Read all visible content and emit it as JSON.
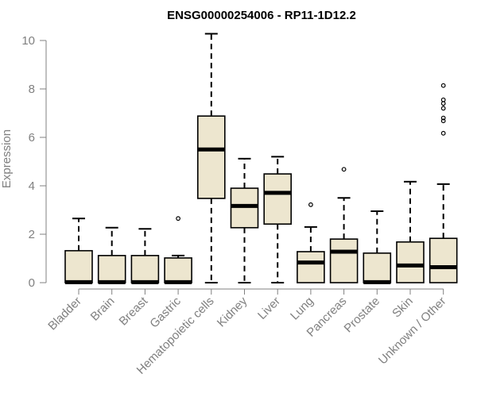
{
  "chart_data": {
    "type": "boxplot",
    "title": "ENSG00000254006 - RP11-1D12.2",
    "ylabel": "Expression",
    "ylim": [
      0,
      10.5
    ],
    "yticks": [
      "0",
      "2",
      "4",
      "6",
      "8",
      "10"
    ],
    "box_fill": "#ede6cf",
    "median_color": "#000000",
    "categories": [
      "Bladder",
      "Brain",
      "Breast",
      "Gastric",
      "Hematopoietic cells",
      "Kidney",
      "Liver",
      "Lung",
      "Pancreas",
      "Prostate",
      "Skin",
      "Unknown / Other"
    ],
    "boxes": [
      {
        "whislo": 0,
        "q1": 0,
        "med": 0.02,
        "q3": 1.32,
        "whishi": 2.65,
        "fliers": []
      },
      {
        "whislo": 0,
        "q1": 0,
        "med": 0.02,
        "q3": 1.12,
        "whishi": 2.27,
        "fliers": []
      },
      {
        "whislo": 0,
        "q1": 0,
        "med": 0.02,
        "q3": 1.12,
        "whishi": 2.22,
        "fliers": []
      },
      {
        "whislo": 0,
        "q1": 0,
        "med": 0.02,
        "q3": 1.02,
        "whishi": 1.12,
        "fliers": [
          2.65
        ]
      },
      {
        "whislo": 0,
        "q1": 3.48,
        "med": 5.5,
        "q3": 6.88,
        "whishi": 10.28,
        "fliers": []
      },
      {
        "whislo": 0,
        "q1": 2.27,
        "med": 3.17,
        "q3": 3.9,
        "whishi": 5.12,
        "fliers": []
      },
      {
        "whislo": 0,
        "q1": 2.42,
        "med": 3.71,
        "q3": 4.49,
        "whishi": 5.2,
        "fliers": []
      },
      {
        "whislo": 0,
        "q1": 0,
        "med": 0.83,
        "q3": 1.28,
        "whishi": 2.3,
        "fliers": [
          3.22
        ]
      },
      {
        "whislo": 0,
        "q1": 0,
        "med": 1.28,
        "q3": 1.8,
        "whishi": 3.5,
        "fliers": [
          4.68
        ]
      },
      {
        "whislo": 0,
        "q1": 0,
        "med": 0.02,
        "q3": 1.22,
        "whishi": 2.95,
        "fliers": []
      },
      {
        "whislo": 0,
        "q1": 0,
        "med": 0.71,
        "q3": 1.68,
        "whishi": 4.17,
        "fliers": []
      },
      {
        "whislo": 0,
        "q1": 0,
        "med": 0.64,
        "q3": 1.83,
        "whishi": 4.07,
        "fliers": [
          6.17,
          6.68,
          6.8,
          7.2,
          7.4,
          7.55,
          8.14
        ]
      }
    ]
  }
}
